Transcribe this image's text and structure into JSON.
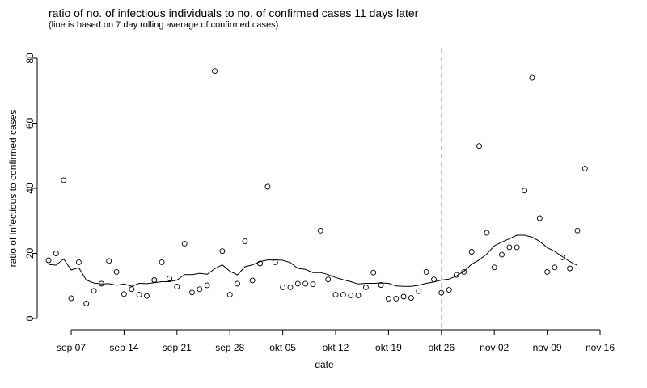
{
  "chart_data": {
    "type": "scatter",
    "title": "ratio of no. of infectious individuals to no. of confirmed cases 11 days later",
    "subtitle": "(line is based on 7 day rolling average of confirmed cases)",
    "xlabel": "date",
    "ylabel": "ratio of infectious to confirmed cases",
    "xlim": [
      "2020-09-04",
      "2020-11-16"
    ],
    "ylim": [
      0,
      80
    ],
    "x_ticks": [
      {
        "date": "2020-09-07",
        "label": "sep 07"
      },
      {
        "date": "2020-09-14",
        "label": "sep 14"
      },
      {
        "date": "2020-09-21",
        "label": "sep 21"
      },
      {
        "date": "2020-09-28",
        "label": "sep 28"
      },
      {
        "date": "2020-10-05",
        "label": "okt 05"
      },
      {
        "date": "2020-10-12",
        "label": "okt 12"
      },
      {
        "date": "2020-10-19",
        "label": "okt 19"
      },
      {
        "date": "2020-10-26",
        "label": "okt 26"
      },
      {
        "date": "2020-11-02",
        "label": "nov 02"
      },
      {
        "date": "2020-11-09",
        "label": "nov 09"
      },
      {
        "date": "2020-11-16",
        "label": "nov 16"
      }
    ],
    "y_ticks": [
      0,
      20,
      40,
      60,
      80
    ],
    "reference_line": {
      "date": "2020-10-26",
      "style": "dashed",
      "color": "#aaaaaa"
    },
    "grid": false,
    "series": [
      {
        "type": "scatter",
        "points": [
          [
            "2020-09-04",
            17.9
          ],
          [
            "2020-09-05",
            20.0
          ],
          [
            "2020-09-06",
            42.5
          ],
          [
            "2020-09-07",
            6.2
          ],
          [
            "2020-09-08",
            17.3
          ],
          [
            "2020-09-09",
            4.6
          ],
          [
            "2020-09-10",
            8.5
          ],
          [
            "2020-09-11",
            10.7
          ],
          [
            "2020-09-12",
            17.7
          ],
          [
            "2020-09-13",
            14.3
          ],
          [
            "2020-09-14",
            7.5
          ],
          [
            "2020-09-15",
            9.0
          ],
          [
            "2020-09-16",
            7.3
          ],
          [
            "2020-09-17",
            6.9
          ],
          [
            "2020-09-18",
            11.8
          ],
          [
            "2020-09-19",
            17.3
          ],
          [
            "2020-09-20",
            12.3
          ],
          [
            "2020-09-21",
            9.8
          ],
          [
            "2020-09-22",
            23.0
          ],
          [
            "2020-09-23",
            8.0
          ],
          [
            "2020-09-24",
            9.0
          ],
          [
            "2020-09-25",
            10.2
          ],
          [
            "2020-09-26",
            76.1
          ],
          [
            "2020-09-27",
            20.7
          ],
          [
            "2020-09-28",
            7.3
          ],
          [
            "2020-09-29",
            10.7
          ],
          [
            "2020-09-30",
            23.7
          ],
          [
            "2020-10-01",
            11.7
          ],
          [
            "2020-10-02",
            16.9
          ],
          [
            "2020-10-03",
            40.5
          ],
          [
            "2020-10-04",
            17.3
          ],
          [
            "2020-10-05",
            9.6
          ],
          [
            "2020-10-06",
            9.6
          ],
          [
            "2020-10-07",
            10.7
          ],
          [
            "2020-10-08",
            10.7
          ],
          [
            "2020-10-09",
            10.5
          ],
          [
            "2020-10-10",
            27.0
          ],
          [
            "2020-10-11",
            12.0
          ],
          [
            "2020-10-12",
            7.3
          ],
          [
            "2020-10-13",
            7.3
          ],
          [
            "2020-10-14",
            7.1
          ],
          [
            "2020-10-15",
            7.1
          ],
          [
            "2020-10-16",
            9.6
          ],
          [
            "2020-10-17",
            14.1
          ],
          [
            "2020-10-18",
            10.3
          ],
          [
            "2020-10-19",
            6.1
          ],
          [
            "2020-10-20",
            6.1
          ],
          [
            "2020-10-21",
            6.7
          ],
          [
            "2020-10-22",
            6.3
          ],
          [
            "2020-10-23",
            8.4
          ],
          [
            "2020-10-24",
            14.3
          ],
          [
            "2020-10-25",
            12.0
          ],
          [
            "2020-10-26",
            7.9
          ],
          [
            "2020-10-27",
            8.8
          ],
          [
            "2020-10-28",
            13.4
          ],
          [
            "2020-10-29",
            14.3
          ],
          [
            "2020-10-30",
            20.5
          ],
          [
            "2020-10-31",
            53.0
          ],
          [
            "2020-11-01",
            26.3
          ],
          [
            "2020-11-02",
            15.7
          ],
          [
            "2020-11-03",
            19.6
          ],
          [
            "2020-11-04",
            21.9
          ],
          [
            "2020-11-05",
            21.9
          ],
          [
            "2020-11-06",
            39.3
          ],
          [
            "2020-11-07",
            74.0
          ],
          [
            "2020-11-08",
            30.8
          ],
          [
            "2020-11-09",
            14.3
          ],
          [
            "2020-11-10",
            15.7
          ],
          [
            "2020-11-11",
            18.8
          ],
          [
            "2020-11-12",
            15.4
          ],
          [
            "2020-11-13",
            27.0
          ],
          [
            "2020-11-14",
            46.1
          ]
        ]
      },
      {
        "type": "line",
        "points": [
          [
            "2020-09-04",
            16.6
          ],
          [
            "2020-09-05",
            16.4
          ],
          [
            "2020-09-06",
            18.3
          ],
          [
            "2020-09-07",
            14.9
          ],
          [
            "2020-09-08",
            15.6
          ],
          [
            "2020-09-09",
            11.8
          ],
          [
            "2020-09-10",
            10.9
          ],
          [
            "2020-09-11",
            10.6
          ],
          [
            "2020-09-12",
            10.7
          ],
          [
            "2020-09-13",
            10.2
          ],
          [
            "2020-09-14",
            10.6
          ],
          [
            "2020-09-15",
            9.9
          ],
          [
            "2020-09-16",
            10.8
          ],
          [
            "2020-09-17",
            10.7
          ],
          [
            "2020-09-18",
            11.0
          ],
          [
            "2020-09-19",
            11.3
          ],
          [
            "2020-09-20",
            11.3
          ],
          [
            "2020-09-21",
            11.8
          ],
          [
            "2020-09-22",
            13.5
          ],
          [
            "2020-09-23",
            13.5
          ],
          [
            "2020-09-24",
            13.9
          ],
          [
            "2020-09-25",
            13.6
          ],
          [
            "2020-09-26",
            15.3
          ],
          [
            "2020-09-27",
            16.5
          ],
          [
            "2020-09-28",
            14.5
          ],
          [
            "2020-09-29",
            13.4
          ],
          [
            "2020-09-30",
            15.9
          ],
          [
            "2020-10-01",
            16.5
          ],
          [
            "2020-10-02",
            17.5
          ],
          [
            "2020-10-03",
            18.0
          ],
          [
            "2020-10-04",
            18.0
          ],
          [
            "2020-10-05",
            17.9
          ],
          [
            "2020-10-06",
            17.2
          ],
          [
            "2020-10-07",
            15.4
          ],
          [
            "2020-10-08",
            15.1
          ],
          [
            "2020-10-09",
            14.1
          ],
          [
            "2020-10-10",
            14.1
          ],
          [
            "2020-10-11",
            13.5
          ],
          [
            "2020-10-12",
            12.6
          ],
          [
            "2020-10-13",
            11.9
          ],
          [
            "2020-10-14",
            11.3
          ],
          [
            "2020-10-15",
            10.6
          ],
          [
            "2020-10-16",
            10.8
          ],
          [
            "2020-10-17",
            10.8
          ],
          [
            "2020-10-18",
            10.9
          ],
          [
            "2020-10-19",
            10.8
          ],
          [
            "2020-10-20",
            10.0
          ],
          [
            "2020-10-21",
            9.9
          ],
          [
            "2020-10-22",
            9.9
          ],
          [
            "2020-10-23",
            10.2
          ],
          [
            "2020-10-24",
            10.8
          ],
          [
            "2020-10-25",
            11.2
          ],
          [
            "2020-10-26",
            11.8
          ],
          [
            "2020-10-27",
            12.1
          ],
          [
            "2020-10-28",
            13.1
          ],
          [
            "2020-10-29",
            14.5
          ],
          [
            "2020-10-30",
            16.7
          ],
          [
            "2020-10-31",
            18.0
          ],
          [
            "2020-11-01",
            19.8
          ],
          [
            "2020-11-02",
            22.3
          ],
          [
            "2020-11-03",
            23.5
          ],
          [
            "2020-11-04",
            24.5
          ],
          [
            "2020-11-05",
            25.6
          ],
          [
            "2020-11-06",
            25.6
          ],
          [
            "2020-11-07",
            25.0
          ],
          [
            "2020-11-08",
            23.7
          ],
          [
            "2020-11-09",
            21.8
          ],
          [
            "2020-11-10",
            20.6
          ],
          [
            "2020-11-11",
            19.0
          ],
          [
            "2020-11-12",
            17.5
          ],
          [
            "2020-11-13",
            16.3
          ]
        ]
      }
    ]
  }
}
